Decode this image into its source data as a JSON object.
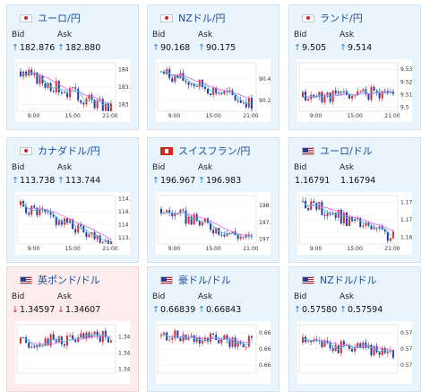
{
  "colors": {
    "up_bg": "#eaf4fd",
    "down_bg": "#fdecee",
    "candle_up": "#d92a36",
    "candle_down": "#1f3da3",
    "ma1": "#e064e8",
    "ma2": "#40c4dc"
  },
  "cards": [
    {
      "title": "ユーロ/円",
      "flag": "jp",
      "trend": "up",
      "bid_label": "Bid",
      "ask_label": "Ask",
      "bid": "182.876",
      "ask": "182.880",
      "bid_arrow": "↑",
      "ask_arrow": "↑",
      "chart_data": {
        "type": "candlestick",
        "x_ticks": [
          "9:00",
          "15:00",
          "21:00"
        ],
        "y_ticks": [
          "184",
          "183.5",
          "183"
        ],
        "ylim": [
          182.8,
          184.2
        ],
        "start": 183.95,
        "end": 182.87,
        "seed": 3
      }
    },
    {
      "title": "NZドル/円",
      "flag": "jp",
      "trend": "up",
      "bid_label": "Bid",
      "ask_label": "Ask",
      "bid": "90.168",
      "ask": "90.175",
      "bid_arrow": "↑",
      "ask_arrow": "↑",
      "chart_data": {
        "type": "candlestick",
        "x_ticks": [
          "9:00",
          "15:00",
          "21:00"
        ],
        "y_ticks": [
          "90.4",
          "90.2"
        ],
        "ylim": [
          90.1,
          90.55
        ],
        "start": 90.47,
        "end": 90.17,
        "seed": 7
      }
    },
    {
      "title": "ランド/円",
      "flag": "jp",
      "trend": "up",
      "bid_label": "Bid",
      "ask_label": "Ask",
      "bid": "9.505",
      "ask": "9.514",
      "bid_arrow": "↑",
      "ask_arrow": "↑",
      "chart_data": {
        "type": "candlestick",
        "x_ticks": [
          "9:00",
          "15:00",
          "21:00"
        ],
        "y_ticks": [
          "9.53",
          "9.52",
          "9.51",
          "9.5"
        ],
        "ylim": [
          9.497,
          9.535
        ],
        "start": 9.508,
        "end": 9.512,
        "seed": 11
      }
    },
    {
      "title": "カナダドル/円",
      "flag": "jp",
      "trend": "up",
      "bid_label": "Bid",
      "ask_label": "Ask",
      "bid": "113.738",
      "ask": "113.744",
      "bid_arrow": "↑",
      "ask_arrow": "↑",
      "chart_data": {
        "type": "candlestick",
        "x_ticks": [
          "9:00",
          "15:00",
          "21:00"
        ],
        "y_ticks": [
          "114.4",
          "114.2",
          "114",
          "113.8"
        ],
        "ylim": [
          113.7,
          114.45
        ],
        "start": 114.3,
        "end": 113.74,
        "seed": 5
      }
    },
    {
      "title": "スイスフラン/円",
      "flag": "ch",
      "trend": "up",
      "bid_label": "Bid",
      "ask_label": "Ask",
      "bid": "196.967",
      "ask": "196.983",
      "bid_arrow": "↑",
      "ask_arrow": "↑",
      "chart_data": {
        "type": "candlestick",
        "x_ticks": [
          "9:00",
          "15:00",
          "21:00"
        ],
        "y_ticks": [
          "198",
          "197.5",
          "197"
        ],
        "ylim": [
          196.85,
          198.3
        ],
        "start": 197.9,
        "end": 196.97,
        "seed": 9
      }
    },
    {
      "title": "ユーロ/ドル",
      "flag": "us",
      "trend": "up",
      "bid_label": "Bid",
      "ask_label": "Ask",
      "bid": "1.16791",
      "ask": "1.16794",
      "bid_arrow": "",
      "ask_arrow": "",
      "chart_data": {
        "type": "candlestick",
        "x_ticks": [
          "9:00",
          "15:00",
          "21:00"
        ],
        "y_ticks": [
          "1.172",
          "1.17",
          "1.168"
        ],
        "ylim": [
          1.1672,
          1.1728
        ],
        "start": 1.1722,
        "end": 1.1679,
        "seed": 13
      }
    },
    {
      "title": "英ポンド/ドル",
      "flag": "uk",
      "trend": "down",
      "bid_label": "Bid",
      "ask_label": "Ask",
      "bid": "1.34597",
      "ask": "1.34607",
      "bid_arrow": "↓",
      "ask_arrow": "↓",
      "chart_data": {
        "type": "candlestick",
        "x_ticks": [],
        "y_ticks": [
          "1.346",
          "1.344",
          "1.342"
        ],
        "ylim": [
          1.3415,
          1.3475
        ],
        "start": 1.3452,
        "end": 1.346,
        "seed": 17
      }
    },
    {
      "title": "豪ドル/ドル",
      "flag": "au",
      "trend": "up",
      "bid_label": "Bid",
      "ask_label": "Ask",
      "bid": "0.66839",
      "ask": "0.66843",
      "bid_arrow": "↑",
      "ask_arrow": "↑",
      "chart_data": {
        "type": "candlestick",
        "x_ticks": [],
        "y_ticks": [
          "0.669",
          "0.668",
          "0.667"
        ],
        "ylim": [
          0.6665,
          0.6695
        ],
        "start": 0.6688,
        "end": 0.6684,
        "seed": 19
      }
    },
    {
      "title": "NZドル/ドル",
      "flag": "nz",
      "trend": "up",
      "bid_label": "Bid",
      "ask_label": "Ask",
      "bid": "0.57580",
      "ask": "0.57594",
      "bid_arrow": "↑",
      "ask_arrow": "↑",
      "chart_data": {
        "type": "candlestick",
        "x_ticks": [],
        "y_ticks": [
          "0.577",
          "0.576",
          "0.575"
        ],
        "ylim": [
          0.5745,
          0.5775
        ],
        "start": 0.5764,
        "end": 0.5758,
        "seed": 23
      }
    }
  ]
}
